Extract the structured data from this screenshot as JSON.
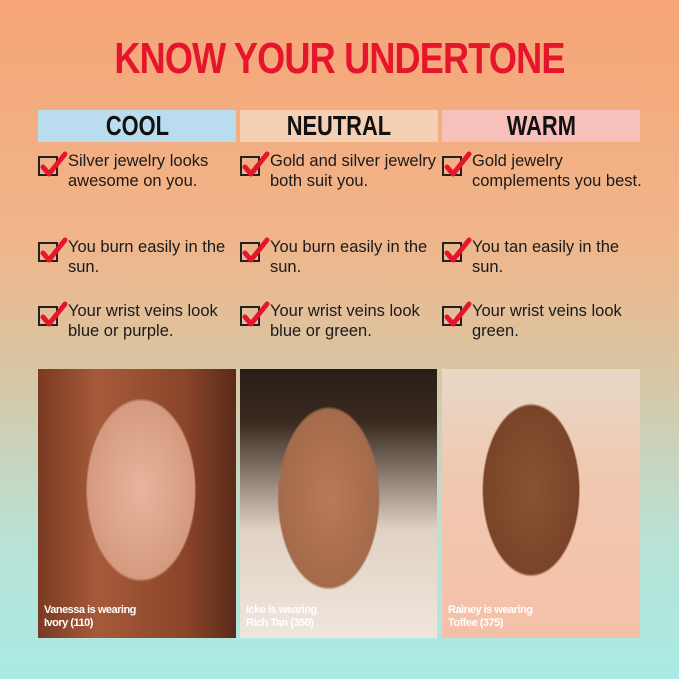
{
  "title": "KNOW YOUR UNDERTONE",
  "columns": [
    {
      "label": "COOL",
      "color": "#b9dcef",
      "items": [
        "Silver jewelry looks awesome on you.",
        "You burn easily in the sun.",
        "Your wrist veins look blue or purple."
      ],
      "caption": [
        "Vanessa is wearing",
        "Ivory (110)"
      ]
    },
    {
      "label": "NEUTRAL",
      "color": "#f5d0b5",
      "items": [
        "Gold and silver jewelry both suit you.",
        "You burn easily in the sun.",
        "Your wrist veins look blue or green."
      ],
      "caption": [
        "Icke is wearing",
        "Rich Tan (350)"
      ]
    },
    {
      "label": "WARM",
      "color": "#f7c0bb",
      "items": [
        "Gold jewelry complements you best.",
        "You tan easily in the sun.",
        "Your wrist veins look green."
      ],
      "caption": [
        "Rainey is wearing",
        "Toffee (375)"
      ]
    }
  ],
  "check_color": "#e5162b",
  "icon": "checkbox-checked-icon"
}
